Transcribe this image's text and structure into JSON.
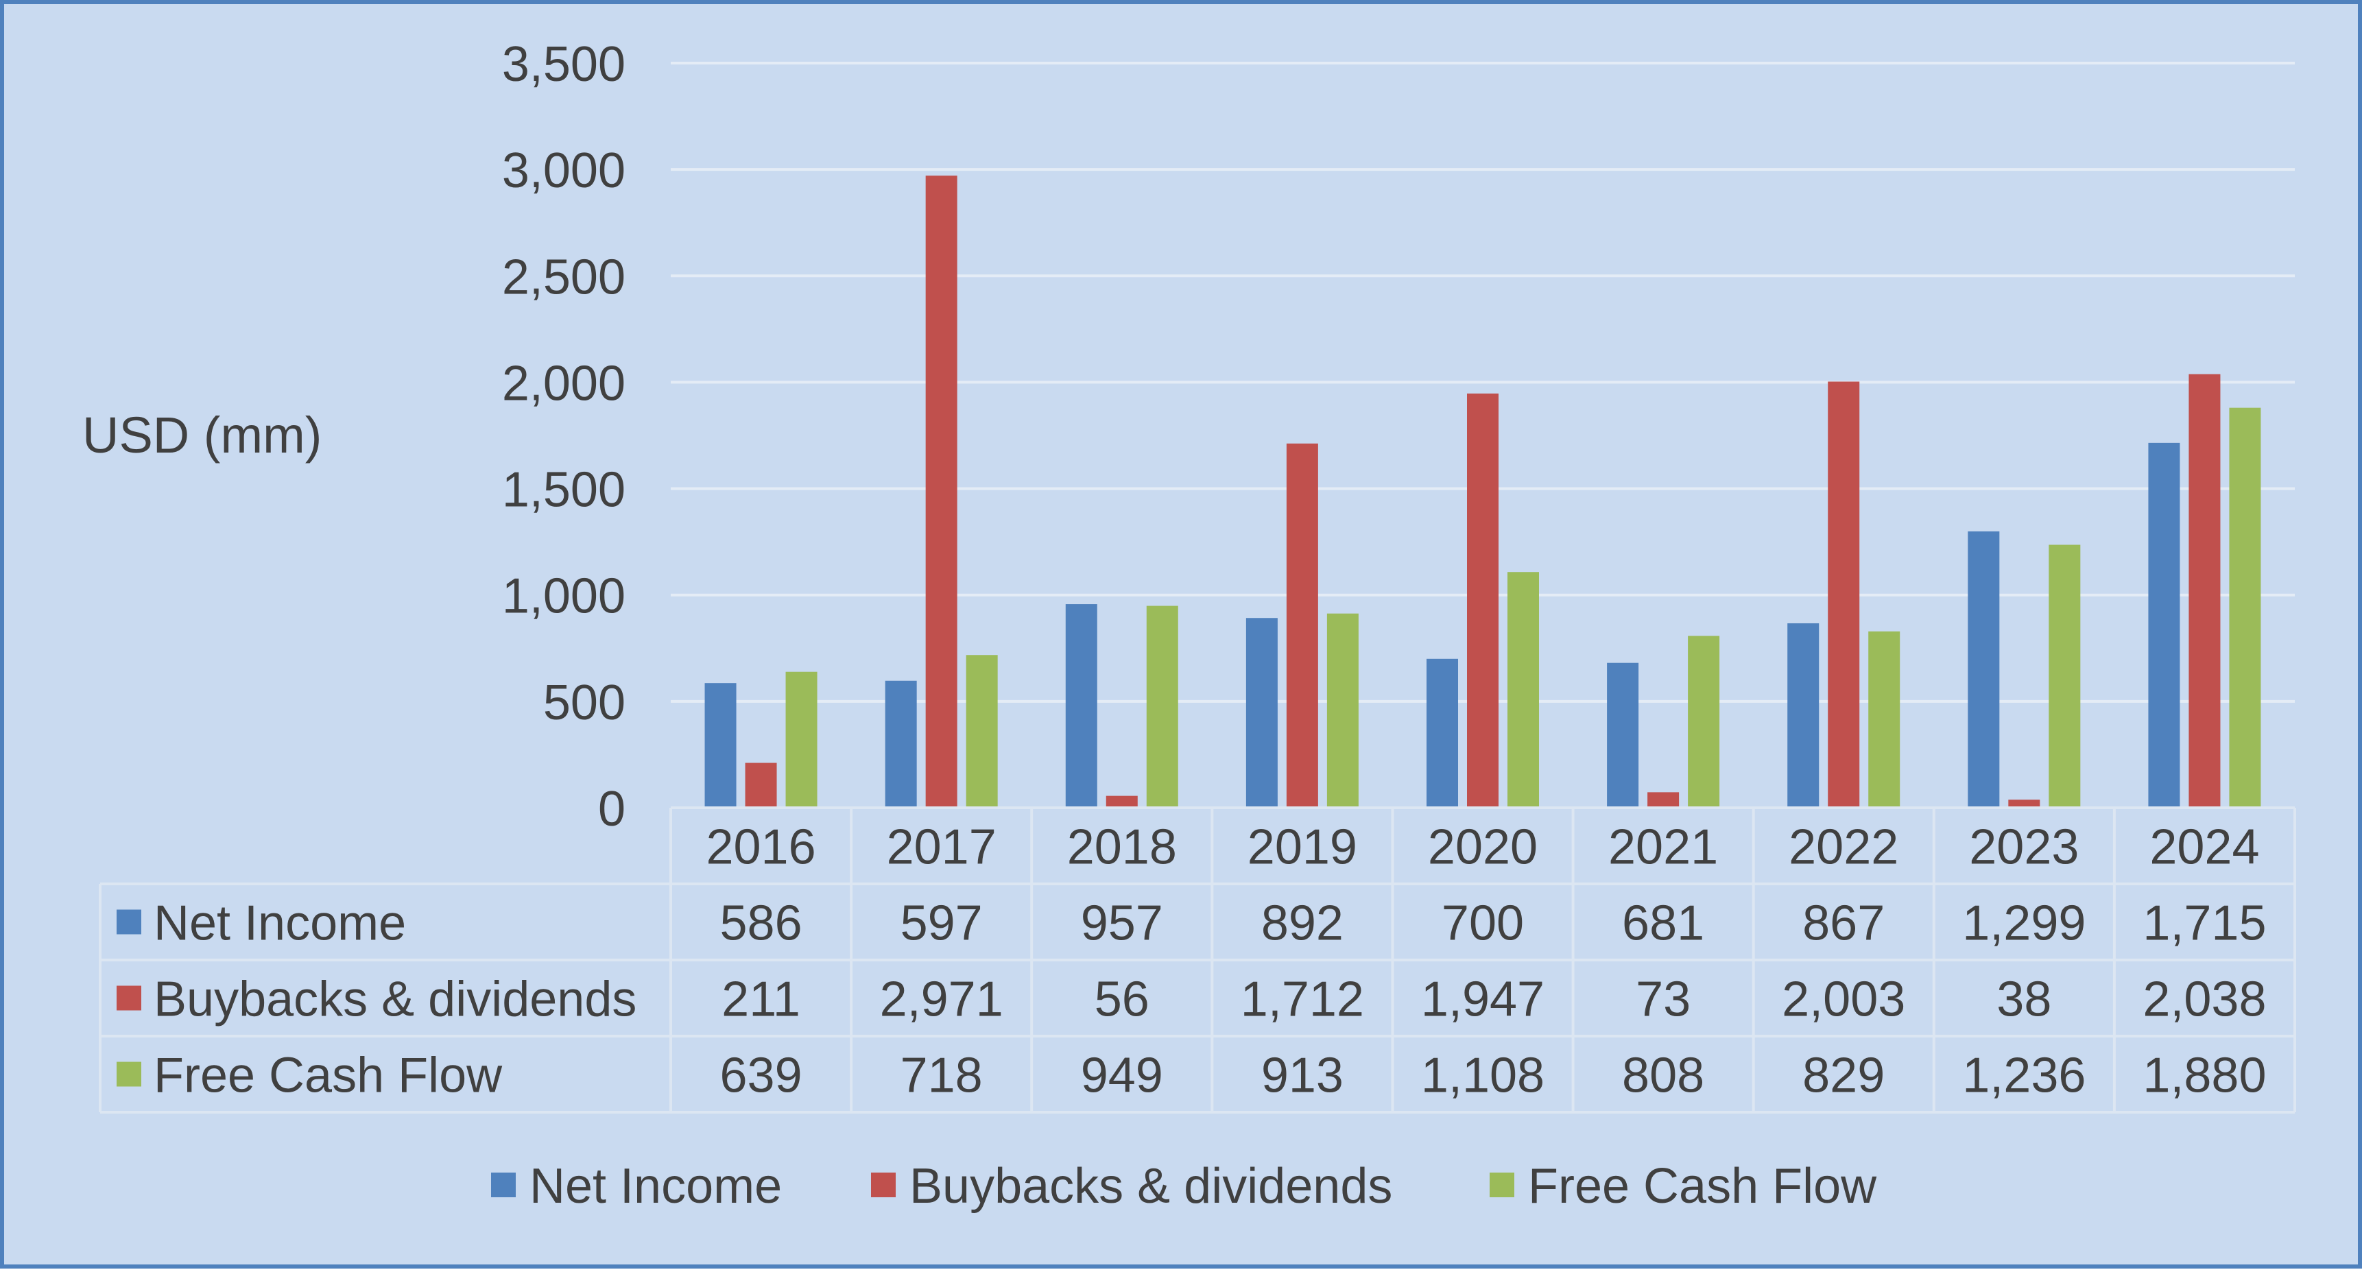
{
  "colors": {
    "background": "#C9DAF0",
    "border": "#4F81BD",
    "gridline": "#E4ECF6",
    "text": "#404040"
  },
  "chart_data": {
    "type": "bar",
    "ylabel": "USD (mm)",
    "ylim": [
      0,
      3500
    ],
    "yticks": [
      0,
      500,
      1000,
      1500,
      2000,
      2500,
      3000,
      3500
    ],
    "ytick_labels": [
      "0",
      "500",
      "1,000",
      "1,500",
      "2,000",
      "2,500",
      "3,000",
      "3,500"
    ],
    "grid": true,
    "legend_position": "bottom",
    "categories": [
      "2016",
      "2017",
      "2018",
      "2019",
      "2020",
      "2021",
      "2022",
      "2023",
      "2024"
    ],
    "series": [
      {
        "name": "Net Income",
        "color": "#4F81BD",
        "values": [
          586,
          597,
          957,
          892,
          700,
          681,
          867,
          1299,
          1715
        ],
        "labels": [
          "586",
          "597",
          "957",
          "892",
          "700",
          "681",
          "867",
          "1,299",
          "1,715"
        ]
      },
      {
        "name": "Buybacks & dividends",
        "color": "#C0504D",
        "values": [
          211,
          2971,
          56,
          1712,
          1947,
          73,
          2003,
          38,
          2038
        ],
        "labels": [
          "211",
          "2,971",
          "56",
          "1,712",
          "1,947",
          "73",
          "2,003",
          "38",
          "2,038"
        ]
      },
      {
        "name": "Free Cash Flow",
        "color": "#9BBB59",
        "values": [
          639,
          718,
          949,
          913,
          1108,
          808,
          829,
          1236,
          1880
        ],
        "labels": [
          "639",
          "718",
          "949",
          "913",
          "1,108",
          "808",
          "829",
          "1,236",
          "1,880"
        ]
      }
    ]
  }
}
